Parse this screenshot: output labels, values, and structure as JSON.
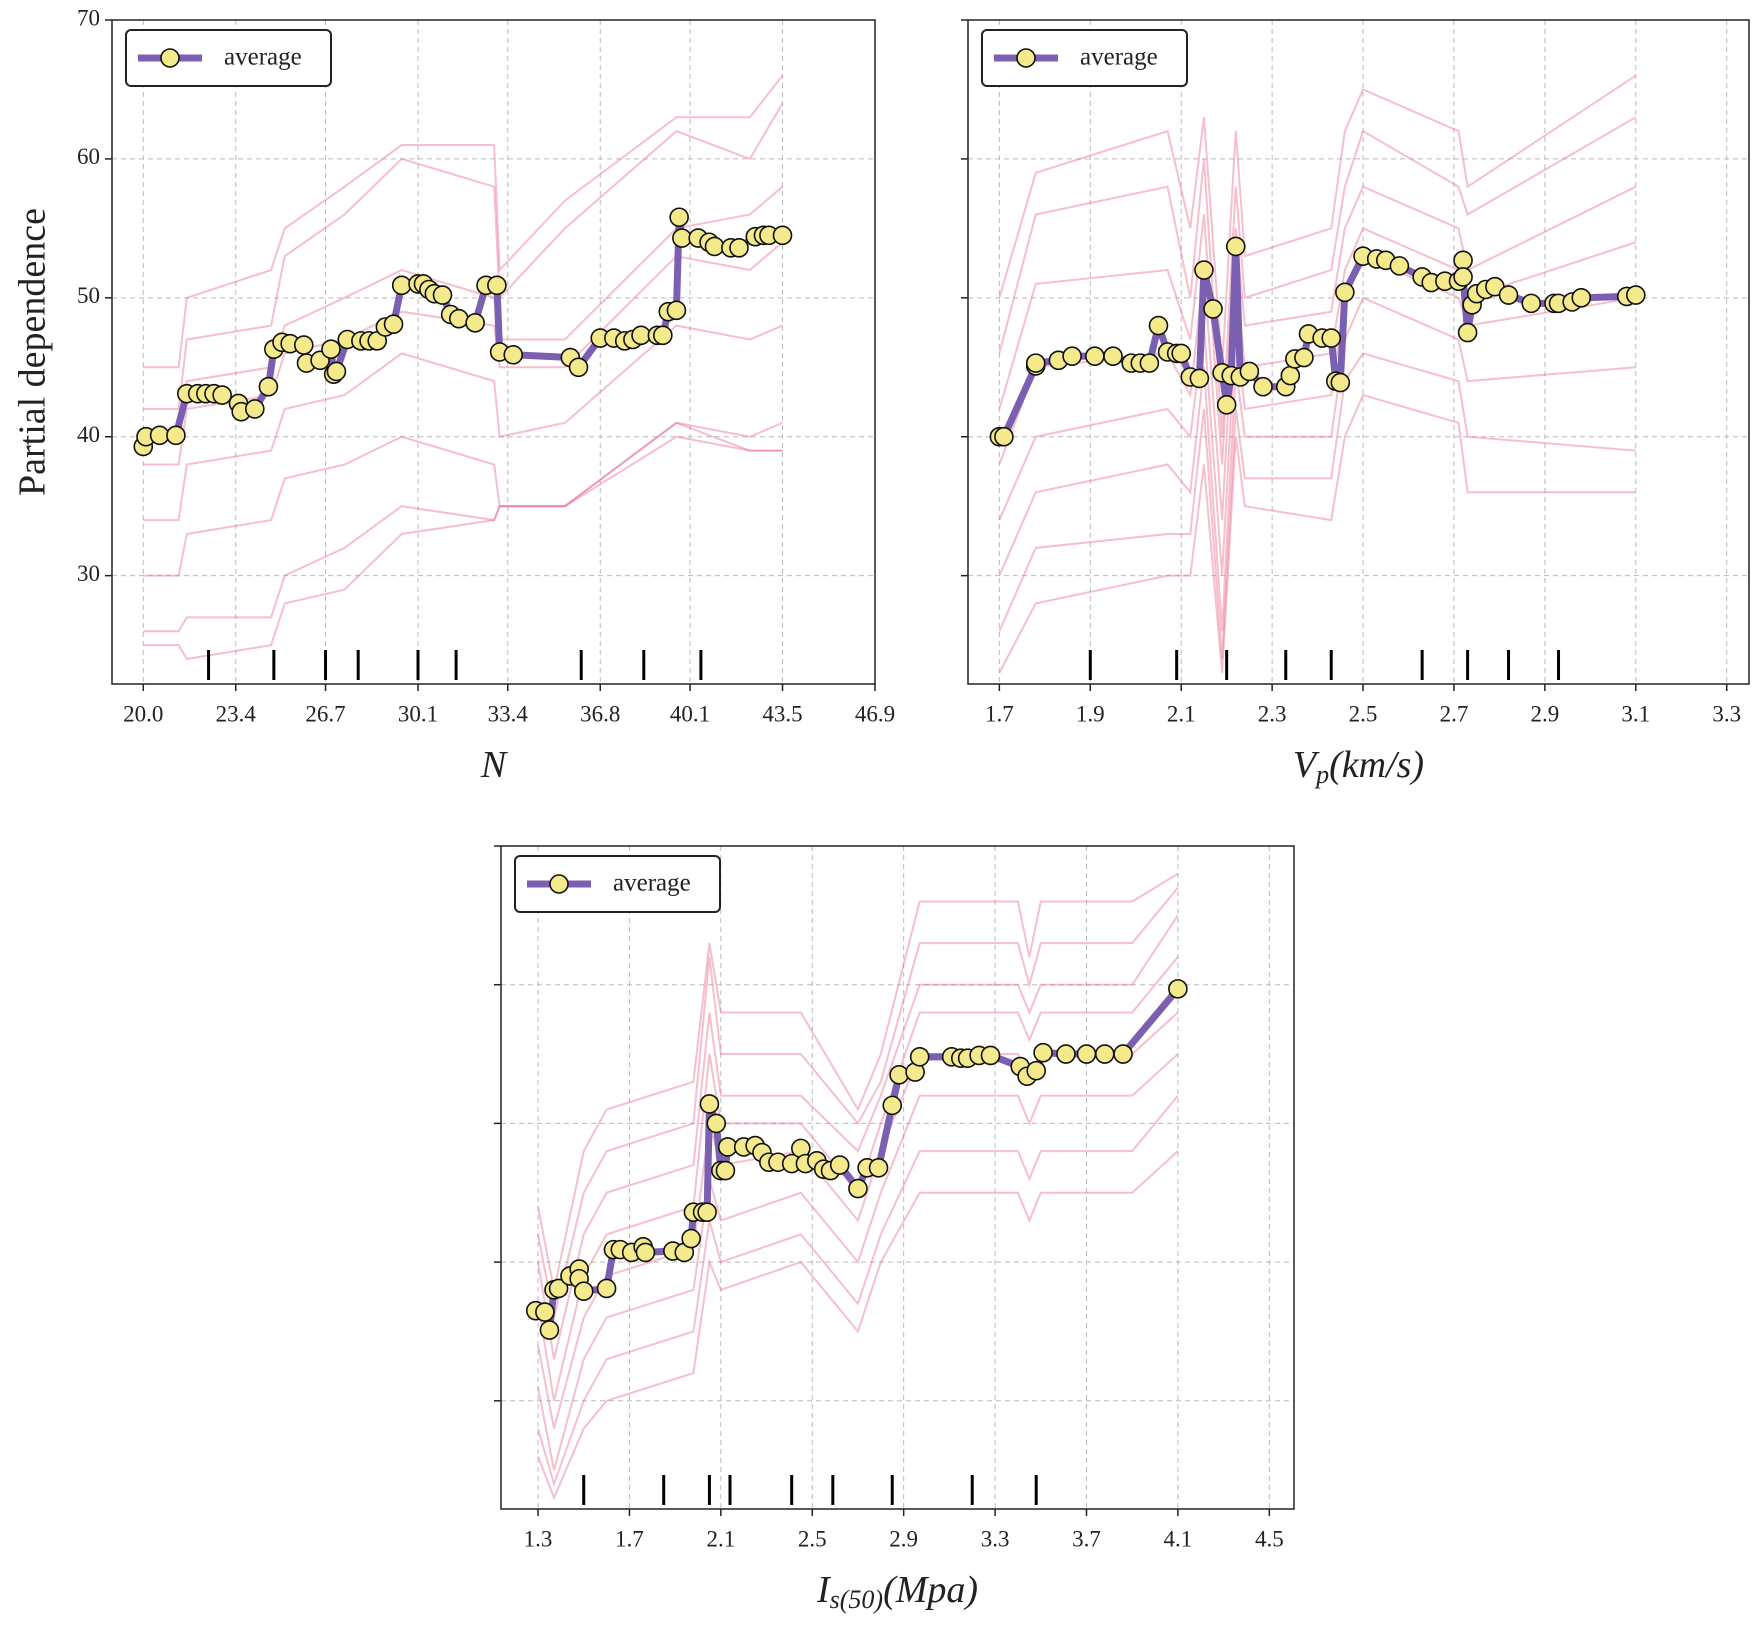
{
  "chart_data": [
    {
      "type": "line",
      "ylabel": "Partial dependence",
      "xlabel": {
        "main": "N"
      },
      "xlim": [
        18.85,
        46.9
      ],
      "ylim": [
        22.2,
        70
      ],
      "xticks": [
        {
          "value": 20.0,
          "label": "20.0"
        },
        23.4,
        26.7,
        30.1,
        33.4,
        36.8,
        40.1,
        43.5,
        46.9
      ],
      "yticks": [
        30,
        40,
        50,
        60,
        70
      ],
      "ytick_labels": true,
      "grid": true,
      "legend": "upper left",
      "x": [
        20.0,
        20.1,
        20.6,
        21.2,
        21.6,
        22.0,
        22.3,
        22.6,
        22.9,
        23.5,
        23.6,
        24.1,
        24.6,
        24.8,
        25.1,
        25.4,
        25.9,
        26.0,
        26.5,
        26.9,
        27.0,
        27.1,
        27.5,
        28.0,
        28.3,
        28.6,
        28.9,
        29.2,
        29.5,
        30.1,
        30.3,
        30.5,
        30.7,
        31.0,
        31.3,
        31.6,
        32.2,
        32.6,
        33.0,
        33.1,
        33.6,
        35.7,
        36.0,
        36.8,
        37.3,
        37.7,
        38.0,
        38.3,
        38.9,
        39.1,
        39.3,
        39.6,
        39.7,
        39.8,
        40.4,
        40.8,
        41.0,
        41.6,
        41.9,
        42.5,
        42.8,
        43.0,
        43.5
      ],
      "series": [
        {
          "name": "average",
          "color": "#7b5fb0",
          "marker_color": "#f4ea8c",
          "values": [
            39.3,
            40.0,
            40.1,
            40.1,
            43.1,
            43.1,
            43.1,
            43.1,
            43.0,
            42.4,
            41.8,
            42.0,
            43.6,
            46.3,
            46.8,
            46.7,
            46.6,
            45.3,
            45.5,
            46.3,
            44.5,
            44.7,
            47.0,
            46.9,
            46.9,
            46.9,
            47.9,
            48.1,
            50.9,
            51.0,
            51.0,
            50.6,
            50.3,
            50.2,
            48.8,
            48.5,
            48.2,
            50.9,
            50.9,
            46.1,
            45.9,
            45.7,
            45.0,
            47.1,
            47.1,
            46.9,
            47.0,
            47.3,
            47.3,
            47.3,
            49.0,
            49.1,
            55.8,
            54.3,
            54.3,
            54.0,
            53.7,
            53.6,
            53.6,
            54.4,
            54.5,
            54.5,
            54.5
          ]
        }
      ],
      "ice_color": "#e8708e",
      "ice_x": [
        20.0,
        21.3,
        21.6,
        24.7,
        25.2,
        27.4,
        29.5,
        32.9,
        33.1,
        35.5,
        39.6,
        42.3,
        43.5
      ],
      "ice_values": [
        [
          45,
          45,
          50,
          52,
          55,
          58,
          61,
          61,
          52,
          57,
          63,
          63,
          66
        ],
        [
          42,
          42,
          47,
          48,
          53,
          56,
          60,
          58,
          50,
          55,
          62,
          60,
          64
        ],
        [
          40,
          40,
          44,
          45,
          48,
          50,
          52,
          50,
          47,
          47,
          55,
          56,
          58
        ],
        [
          38,
          38,
          42,
          43,
          46,
          47,
          49,
          48,
          45,
          45,
          53,
          52,
          54
        ],
        [
          34,
          34,
          38,
          39,
          42,
          43,
          46,
          44,
          40,
          41,
          48,
          47,
          48
        ],
        [
          30,
          30,
          33,
          34,
          37,
          38,
          40,
          38,
          35,
          35,
          41,
          40,
          41
        ],
        [
          26,
          26,
          27,
          27,
          30,
          32,
          35,
          34,
          35,
          35,
          41,
          39,
          39
        ],
        [
          25,
          25,
          24,
          25,
          28,
          29,
          33,
          34,
          35,
          35,
          40,
          39,
          39
        ]
      ],
      "rug": [
        22.4,
        24.8,
        26.7,
        27.9,
        30.1,
        31.5,
        36.1,
        38.4,
        40.5
      ]
    },
    {
      "type": "line",
      "xlabel": {
        "main": "V",
        "sub": "p",
        "tail": "(km/s)"
      },
      "xlim": [
        1.631,
        3.349
      ],
      "ylim": [
        22.2,
        70
      ],
      "xticks": [
        1.7,
        1.9,
        2.1,
        2.3,
        2.5,
        2.7,
        2.9,
        3.1,
        3.3
      ],
      "yticks": [
        30,
        40,
        50,
        60,
        70
      ],
      "ytick_labels": false,
      "grid": true,
      "legend": "upper left",
      "x": [
        1.7,
        1.71,
        1.78,
        1.78,
        1.83,
        1.86,
        1.91,
        1.95,
        1.99,
        2.01,
        2.03,
        2.05,
        2.07,
        2.09,
        2.1,
        2.12,
        2.14,
        2.15,
        2.17,
        2.19,
        2.2,
        2.21,
        2.22,
        2.23,
        2.25,
        2.28,
        2.33,
        2.34,
        2.35,
        2.37,
        2.38,
        2.41,
        2.43,
        2.44,
        2.45,
        2.46,
        2.5,
        2.53,
        2.55,
        2.58,
        2.63,
        2.65,
        2.68,
        2.71,
        2.72,
        2.72,
        2.73,
        2.74,
        2.75,
        2.77,
        2.79,
        2.82,
        2.87,
        2.92,
        2.93,
        2.96,
        2.98,
        3.08,
        3.1
      ],
      "series": [
        {
          "name": "average",
          "color": "#7b5fb0",
          "marker_color": "#f4ea8c",
          "values": [
            40.0,
            40.0,
            45.1,
            45.3,
            45.5,
            45.8,
            45.8,
            45.8,
            45.3,
            45.3,
            45.3,
            48.0,
            46.1,
            46.0,
            46.0,
            44.3,
            44.2,
            52.0,
            49.2,
            44.6,
            42.3,
            44.4,
            53.7,
            44.3,
            44.7,
            43.6,
            43.6,
            44.4,
            45.6,
            45.7,
            47.4,
            47.1,
            47.1,
            44.0,
            43.9,
            50.4,
            53.0,
            52.8,
            52.7,
            52.3,
            51.5,
            51.1,
            51.2,
            51.2,
            52.7,
            51.5,
            47.5,
            49.5,
            50.3,
            50.6,
            50.8,
            50.2,
            49.6,
            49.6,
            49.6,
            49.7,
            50.0,
            50.1,
            50.2
          ]
        }
      ],
      "ice_color": "#e8708e",
      "ice_x": [
        1.7,
        1.78,
        2.07,
        2.12,
        2.15,
        2.19,
        2.22,
        2.24,
        2.43,
        2.46,
        2.5,
        2.71,
        2.73,
        3.1
      ],
      "ice_values": [
        [
          50,
          59,
          62,
          55,
          63,
          45,
          62,
          53,
          55,
          62,
          65,
          62,
          58,
          66
        ],
        [
          46,
          56,
          58,
          50,
          60,
          40,
          58,
          50,
          52,
          58,
          62,
          58,
          56,
          63
        ],
        [
          42,
          51,
          52,
          47,
          56,
          38,
          55,
          48,
          49,
          55,
          58,
          55,
          52,
          58
        ],
        [
          38,
          45,
          46,
          43,
          52,
          34,
          52,
          45,
          46,
          52,
          55,
          52,
          50,
          54
        ],
        [
          34,
          40,
          42,
          40,
          48,
          30,
          48,
          42,
          43,
          50,
          53,
          50,
          48,
          50
        ],
        [
          30,
          36,
          38,
          36,
          45,
          26,
          45,
          40,
          40,
          47,
          50,
          47,
          44,
          45
        ],
        [
          26,
          32,
          33,
          33,
          42,
          24,
          42,
          37,
          37,
          44,
          46,
          44,
          40,
          39
        ],
        [
          23,
          28,
          30,
          30,
          38,
          23,
          40,
          35,
          34,
          40,
          43,
          41,
          36,
          36
        ]
      ],
      "rug": [
        1.9,
        2.09,
        2.2,
        2.33,
        2.43,
        2.63,
        2.73,
        2.82,
        2.93
      ]
    },
    {
      "type": "line",
      "xlabel": {
        "main": "I",
        "sub": "s(50)",
        "tail": "(Mpa)"
      },
      "xlim": [
        1.138,
        4.608
      ],
      "ylim": [
        22.2,
        70
      ],
      "xticks": [
        1.3,
        1.7,
        2.1,
        2.5,
        2.9,
        3.3,
        3.7,
        4.1,
        4.5
      ],
      "yticks": [
        30,
        40,
        50,
        60,
        70
      ],
      "ytick_labels": false,
      "grid": true,
      "legend": "upper left",
      "x": [
        1.29,
        1.33,
        1.35,
        1.37,
        1.39,
        1.44,
        1.48,
        1.48,
        1.5,
        1.6,
        1.63,
        1.66,
        1.71,
        1.76,
        1.77,
        1.89,
        1.94,
        1.97,
        1.98,
        2.02,
        2.04,
        2.05,
        2.08,
        2.1,
        2.12,
        2.13,
        2.2,
        2.25,
        2.28,
        2.31,
        2.35,
        2.41,
        2.45,
        2.47,
        2.52,
        2.55,
        2.58,
        2.62,
        2.7,
        2.74,
        2.79,
        2.85,
        2.88,
        2.95,
        2.97,
        3.11,
        3.15,
        3.18,
        3.23,
        3.28,
        3.41,
        3.44,
        3.48,
        3.51,
        3.61,
        3.7,
        3.78,
        3.86,
        4.1
      ],
      "series": [
        {
          "name": "average",
          "color": "#7b5fb0",
          "marker_color": "#f4ea8c",
          "values": [
            36.5,
            36.4,
            35.1,
            38.0,
            38.1,
            39.0,
            39.5,
            38.8,
            37.9,
            38.1,
            40.9,
            40.9,
            40.7,
            41.1,
            40.7,
            40.8,
            40.7,
            41.7,
            43.6,
            43.6,
            43.6,
            51.4,
            50.0,
            46.6,
            46.6,
            48.3,
            48.3,
            48.4,
            47.9,
            47.2,
            47.2,
            47.1,
            48.2,
            47.1,
            47.3,
            46.7,
            46.6,
            47.0,
            45.3,
            46.8,
            46.8,
            51.3,
            53.5,
            53.7,
            54.8,
            54.8,
            54.7,
            54.7,
            54.9,
            54.9,
            54.1,
            53.4,
            53.8,
            55.1,
            55.0,
            55.0,
            55.0,
            55.0,
            59.7
          ]
        }
      ],
      "ice_color": "#e8708e",
      "ice_x": [
        1.3,
        1.37,
        1.5,
        1.6,
        1.98,
        2.05,
        2.1,
        2.45,
        2.7,
        2.8,
        2.97,
        3.4,
        3.45,
        3.5,
        3.9,
        4.1
      ],
      "ice_values": [
        [
          44,
          38,
          48,
          51,
          53,
          63,
          58,
          58,
          51,
          55,
          66,
          66,
          62,
          66,
          66,
          68
        ],
        [
          42,
          36,
          45,
          48,
          50,
          62,
          55,
          55,
          50,
          53,
          63,
          63,
          60,
          63,
          63,
          67
        ],
        [
          40,
          33,
          42,
          45,
          47,
          58,
          52,
          52,
          48,
          52,
          60,
          60,
          58,
          60,
          60,
          65
        ],
        [
          37,
          30,
          39,
          42,
          44,
          55,
          50,
          50,
          45,
          50,
          58,
          58,
          56,
          58,
          58,
          62
        ],
        [
          34,
          28,
          36,
          39,
          41,
          50,
          47,
          48,
          43,
          48,
          55,
          55,
          53,
          55,
          55,
          58
        ],
        [
          31,
          25,
          33,
          36,
          38,
          46,
          43,
          45,
          40,
          45,
          52,
          52,
          50,
          52,
          52,
          55
        ],
        [
          28,
          24,
          30,
          33,
          35,
          43,
          40,
          42,
          37,
          42,
          48,
          48,
          46,
          48,
          48,
          52
        ],
        [
          26,
          23,
          28,
          30,
          32,
          40,
          38,
          40,
          35,
          40,
          45,
          45,
          43,
          45,
          45,
          48
        ]
      ],
      "rug": [
        1.5,
        1.85,
        2.05,
        2.14,
        2.41,
        2.59,
        2.85,
        3.2,
        3.48
      ]
    }
  ]
}
